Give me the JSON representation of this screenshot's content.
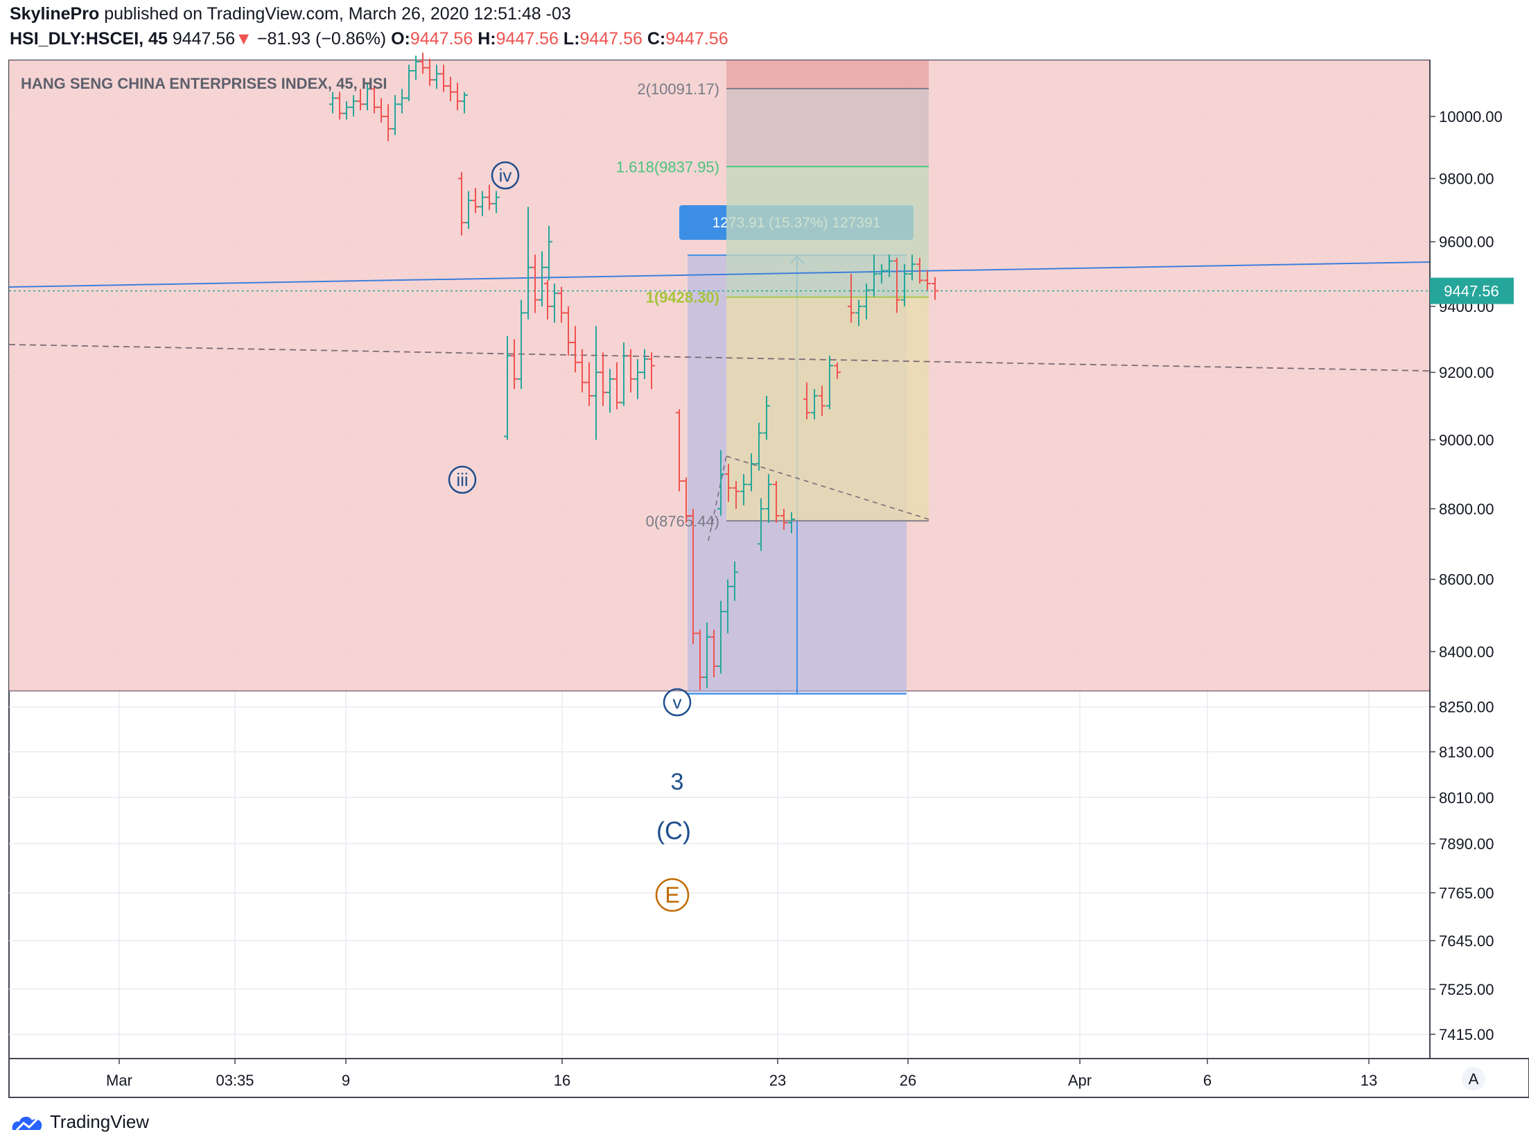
{
  "header": {
    "author": "SkylinePro",
    "published_text": "published on TradingView.com, March 26, 2020 12:51:48 -03",
    "symbol": "HSI_DLY:HSCEI, 45",
    "last": "9447.56",
    "change_arrow": "▼",
    "change": "−81.93 (−0.86%)",
    "o_label": "O:",
    "o_value": "9447.56",
    "h_label": "H:",
    "h_value": "9447.56",
    "l_label": "L:",
    "l_value": "9447.56",
    "c_label": "C:",
    "c_value": "9447.56"
  },
  "footer": {
    "brand": "TradingView"
  },
  "colors": {
    "up": "#26a69a",
    "down": "#ef5350",
    "zone_fill": "#f4cccc",
    "trend_line": "#3d7fd9",
    "price_label_bg": "#26a69a",
    "measure_blue": "#3d8fe6",
    "fib_green": "#48c47a",
    "fib_lime": "#a5c43b",
    "fib_grey": "#787b86",
    "wave_label": "#1f4e8c",
    "e_circle": "#c06a00"
  },
  "chart_data": {
    "type": "candlestick",
    "title": "HANG SENG CHINA ENTERPRISES INDEX, 45, HSI",
    "x_ticks": [
      "Mar",
      "03:35",
      "9",
      "16",
      "23",
      "26",
      "Apr",
      "6",
      "13"
    ],
    "y_ticks": [
      "10000.00",
      "9800.00",
      "9600.00",
      "9400.00",
      "9200.00",
      "9000.00",
      "8800.00",
      "8600.00",
      "8400.00",
      "8250.00",
      "8130.00",
      "8010.00",
      "7890.00",
      "7765.00",
      "7645.00",
      "7525.00",
      "7415.00"
    ],
    "y_ticks_log_values": [
      10000,
      9800,
      9600,
      9400,
      9200,
      9000,
      8800,
      8600,
      8400,
      8250,
      8130,
      8010,
      7890,
      7765,
      7645,
      7525,
      7415
    ],
    "y_scale": "log",
    "last_price": 9447.56,
    "last_price_label": "9447.56",
    "axis_badge": "A",
    "price_zone": {
      "from": 8293,
      "to": 10200,
      "color": "red"
    },
    "fib_levels": [
      {
        "label": "2(10091.17)",
        "value": 10091.17
      },
      {
        "label": "1.618(9837.95)",
        "value": 9837.95
      },
      {
        "label": "1(9428.30)",
        "value": 9428.3
      },
      {
        "label": "0(8765.44)",
        "value": 8765.44
      }
    ],
    "measure_label": "1273.91 (15.37%) 127391",
    "measure_range": [
      8285,
      9558
    ],
    "wave_labels": [
      "iv",
      "iii",
      "v",
      "3",
      "(C)",
      "E"
    ],
    "candles": [
      [
        10040,
        10080,
        10010,
        10060
      ],
      [
        10060,
        10080,
        9990,
        10010
      ],
      [
        10010,
        10050,
        9990,
        10030
      ],
      [
        10030,
        10070,
        10000,
        10050
      ],
      [
        10050,
        10090,
        10020,
        10040
      ],
      [
        10040,
        10110,
        10020,
        10090
      ],
      [
        10090,
        10100,
        10010,
        10030
      ],
      [
        10030,
        10060,
        9980,
        10000
      ],
      [
        10000,
        10040,
        9920,
        9960
      ],
      [
        9960,
        10070,
        9940,
        10040
      ],
      [
        10040,
        10090,
        10010,
        10060
      ],
      [
        10060,
        10170,
        10050,
        10150
      ],
      [
        10150,
        10200,
        10120,
        10180
      ],
      [
        10180,
        10210,
        10140,
        10160
      ],
      [
        10160,
        10190,
        10100,
        10120
      ],
      [
        10120,
        10170,
        10090,
        10140
      ],
      [
        10140,
        10170,
        10080,
        10100
      ],
      [
        10100,
        10130,
        10050,
        10080
      ],
      [
        10080,
        10110,
        10020,
        10050
      ],
      [
        10050,
        10080,
        10010,
        10070
      ],
      [
        9800,
        9820,
        9620,
        9660
      ],
      [
        9660,
        9760,
        9640,
        9730
      ],
      [
        9730,
        9770,
        9690,
        9710
      ],
      [
        9710,
        9760,
        9680,
        9740
      ],
      [
        9740,
        9780,
        9700,
        9720
      ],
      [
        9720,
        9760,
        9690,
        9740
      ],
      [
        9010,
        9310,
        9000,
        9250
      ],
      [
        9250,
        9300,
        9150,
        9180
      ],
      [
        9180,
        9420,
        9150,
        9380
      ],
      [
        9380,
        9710,
        9360,
        9520
      ],
      [
        9520,
        9560,
        9380,
        9420
      ],
      [
        9420,
        9570,
        9400,
        9520
      ],
      [
        9520,
        9650,
        9480,
        9600
      ],
      [
        9470,
        9480,
        9360,
        9400
      ],
      [
        9400,
        9470,
        9350,
        9440
      ],
      [
        9440,
        9460,
        9350,
        9380
      ],
      [
        9380,
        9400,
        9250,
        9290
      ],
      [
        9290,
        9340,
        9200,
        9230
      ],
      [
        9230,
        9270,
        9140,
        9170
      ],
      [
        9170,
        9230,
        9100,
        9130
      ],
      [
        9130,
        9340,
        9000,
        9200
      ],
      [
        9200,
        9260,
        9100,
        9140
      ],
      [
        9140,
        9210,
        9080,
        9180
      ],
      [
        9180,
        9230,
        9090,
        9110
      ],
      [
        9110,
        9290,
        9100,
        9250
      ],
      [
        9250,
        9270,
        9140,
        9180
      ],
      [
        9180,
        9240,
        9120,
        9200
      ],
      [
        9200,
        9270,
        9180,
        9240
      ],
      [
        9240,
        9260,
        9150,
        9220
      ],
      [
        9080,
        9090,
        8850,
        8880
      ],
      [
        8880,
        8890,
        8760,
        8780
      ],
      [
        8780,
        8800,
        8420,
        8450
      ],
      [
        8450,
        8460,
        8295,
        8330
      ],
      [
        8330,
        8480,
        8300,
        8440
      ],
      [
        8440,
        8460,
        8330,
        8360
      ],
      [
        8360,
        8540,
        8340,
        8510
      ],
      [
        8510,
        8600,
        8450,
        8580
      ],
      [
        8580,
        8650,
        8540,
        8620
      ],
      [
        8800,
        8970,
        8780,
        8900
      ],
      [
        8900,
        8930,
        8820,
        8860
      ],
      [
        8860,
        8880,
        8800,
        8850
      ],
      [
        8850,
        8900,
        8810,
        8870
      ],
      [
        8870,
        8960,
        8850,
        8930
      ],
      [
        8930,
        9050,
        8910,
        9020
      ],
      [
        9020,
        9130,
        9000,
        9100
      ],
      [
        8700,
        8830,
        8680,
        8800
      ],
      [
        8800,
        8900,
        8760,
        8870
      ],
      [
        8870,
        8880,
        8760,
        8780
      ],
      [
        8780,
        8800,
        8740,
        8760
      ],
      [
        8760,
        8790,
        8730,
        8770
      ],
      [
        9120,
        9170,
        9060,
        9080
      ],
      [
        9080,
        9150,
        9060,
        9130
      ],
      [
        9130,
        9160,
        9070,
        9100
      ],
      [
        9100,
        9250,
        9090,
        9220
      ],
      [
        9220,
        9230,
        9180,
        9200
      ],
      [
        9400,
        9500,
        9350,
        9380
      ],
      [
        9380,
        9420,
        9340,
        9400
      ],
      [
        9400,
        9470,
        9360,
        9450
      ],
      [
        9450,
        9560,
        9430,
        9500
      ],
      [
        9500,
        9530,
        9470,
        9510
      ],
      [
        9510,
        9560,
        9490,
        9540
      ],
      [
        9540,
        9550,
        9380,
        9420
      ],
      [
        9420,
        9530,
        9400,
        9500
      ],
      [
        9500,
        9560,
        9480,
        9530
      ],
      [
        9530,
        9550,
        9470,
        9480
      ],
      [
        9480,
        9510,
        9450,
        9470
      ],
      [
        9470,
        9490,
        9420,
        9447.56
      ]
    ]
  }
}
